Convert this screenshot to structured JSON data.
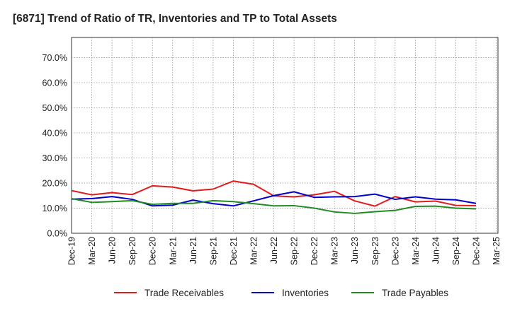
{
  "chart_data": {
    "type": "line",
    "title": "[6871]  Trend of Ratio of TR, Inventories and TP to Total Assets",
    "xlabel": "",
    "ylabel": "",
    "x_ticks": [
      "Dec-19",
      "Mar-20",
      "Jun-20",
      "Sep-20",
      "Dec-20",
      "Mar-21",
      "Jun-21",
      "Sep-21",
      "Dec-21",
      "Mar-22",
      "Jun-22",
      "Sep-22",
      "Dec-22",
      "Mar-23",
      "Jun-23",
      "Sep-23",
      "Dec-23",
      "Mar-24",
      "Jun-24",
      "Sep-24",
      "Dec-24",
      "Mar-25"
    ],
    "y_ticks": [
      "0.0%",
      "10.0%",
      "20.0%",
      "30.0%",
      "40.0%",
      "50.0%",
      "60.0%",
      "70.0%"
    ],
    "ylim": [
      0,
      78
    ],
    "y_tick_values": [
      0,
      10,
      20,
      30,
      40,
      50,
      60,
      70
    ],
    "grid": true,
    "legend_position": "bottom",
    "categories": [
      "Dec-19",
      "Mar-20",
      "Jun-20",
      "Sep-20",
      "Dec-20",
      "Mar-21",
      "Jun-21",
      "Sep-21",
      "Dec-21",
      "Mar-22",
      "Jun-22",
      "Sep-22",
      "Dec-22",
      "Mar-23",
      "Jun-23",
      "Sep-23",
      "Dec-23",
      "Mar-24",
      "Jun-24",
      "Sep-24",
      "Dec-24"
    ],
    "series": [
      {
        "name": "Trade Receivables",
        "color": "#e31a1c",
        "values": [
          17.0,
          15.3,
          16.2,
          15.4,
          18.9,
          18.4,
          16.9,
          17.6,
          20.8,
          19.5,
          14.9,
          14.5,
          15.3,
          16.7,
          12.9,
          10.8,
          14.6,
          12.5,
          12.8,
          11.1,
          11.0
        ]
      },
      {
        "name": "Inventories",
        "color": "#0000cc",
        "values": [
          13.6,
          13.8,
          14.6,
          13.5,
          10.9,
          11.2,
          13.2,
          11.8,
          10.9,
          12.9,
          15.0,
          16.5,
          14.3,
          14.5,
          14.6,
          15.6,
          13.5,
          14.5,
          13.6,
          13.3,
          11.9
        ]
      },
      {
        "name": "Trade Payables",
        "color": "#228b22",
        "values": [
          13.8,
          12.3,
          12.6,
          13.0,
          11.5,
          11.9,
          11.9,
          13.0,
          12.6,
          11.8,
          10.9,
          11.0,
          10.0,
          8.5,
          7.9,
          8.6,
          9.1,
          10.7,
          10.8,
          10.0,
          9.7
        ]
      }
    ]
  }
}
